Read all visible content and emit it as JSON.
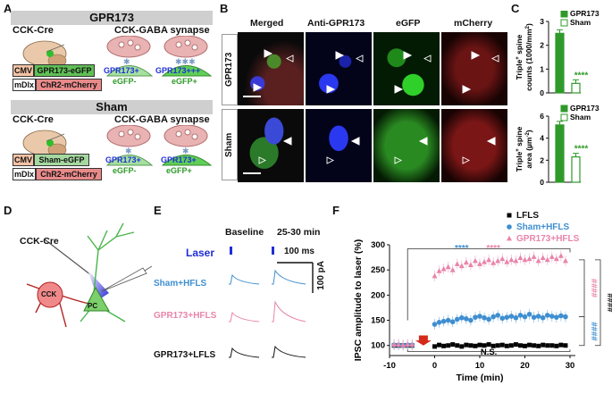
{
  "panels": {
    "a": "A",
    "b": "B",
    "c": "C",
    "d": "D",
    "e": "E",
    "f": "F"
  },
  "panelA": {
    "top": {
      "banner": "GPR173",
      "mouse": "CCK-Cre",
      "synapse": "CCK-GABA synapse",
      "cmv": "CMV",
      "construct": "GPR173-eGFP",
      "mdlx": "mDlx",
      "chr2": "ChR2-mCherry",
      "left_line1": "GPR173+",
      "left_line2": "eGFP-",
      "right_line1": "GPR173+++",
      "right_line2": "eGFP+"
    },
    "bottom": {
      "banner": "Sham",
      "mouse": "CCK-Cre",
      "synapse": "CCK-GABA synapse",
      "cmv": "CMV",
      "construct": "Sham-eGFP",
      "mdlx": "mDlx",
      "chr2": "ChR2-mCherry",
      "left_line1": "GPR173+",
      "left_line2": "eGFP-",
      "right_line1": "GPR173+",
      "right_line2": "eGFP+"
    }
  },
  "panelB": {
    "columns": [
      "Merged",
      "Anti-GPR173",
      "eGFP",
      "mCherry"
    ],
    "rows": [
      "GPR173",
      "Sham"
    ],
    "colors": {
      "merged": "#6a3a9a",
      "blue": "#1f2fd6",
      "green": "#2fbf2a",
      "red": "#d42a2a"
    }
  },
  "panelC": {
    "chart_data": [
      {
        "type": "bar",
        "categories": [
          "GPR173",
          "Sham"
        ],
        "values": [
          2.5,
          0.4
        ],
        "ylim": [
          0,
          3
        ],
        "yticks": [
          "0",
          "1",
          "2",
          "3"
        ],
        "ylabel": "Triple+ spine counts (1000/mm2)",
        "ylabel_parts": [
          "Triple",
          "+",
          " spine",
          "counts (1000/mm",
          "2",
          ")"
        ],
        "legend": [
          "GPR173",
          "Sham"
        ],
        "significance": "****"
      },
      {
        "type": "bar",
        "categories": [
          "GPR173",
          "Sham"
        ],
        "values": [
          5.2,
          2.3
        ],
        "ylim": [
          0,
          6
        ],
        "yticks": [
          "0",
          "2",
          "4",
          "6"
        ],
        "ylabel": "Triple+ spine area (µm-2)",
        "ylabel_parts": [
          "Triple",
          "+",
          " spine",
          "area (µm",
          "-2",
          ")"
        ],
        "legend": [
          "GPR173",
          "Sham"
        ],
        "significance": "****"
      }
    ],
    "colors": {
      "gpr173": "#2f9a2a",
      "sham": "#ffffff"
    }
  },
  "panelD": {
    "cck_cre": "CCK-Cre",
    "cck": "CCK",
    "pc": "PC"
  },
  "panelE": {
    "baseline": "Baseline",
    "post": "25-30 min",
    "laser": "Laser",
    "scale_time": "100 ms",
    "scale_amp": "100 pA",
    "traces": [
      {
        "label": "Sham+HFLS",
        "color": "#3f8fd0"
      },
      {
        "label": "GPR173+HFLS",
        "color": "#e985aa"
      },
      {
        "label": "GPR173+LFLS",
        "color": "#111111"
      }
    ]
  },
  "panelF": {
    "chart_data": {
      "type": "scatter",
      "xlabel": "Time (min)",
      "ylabel": "IPSC amplitude to laser (%)",
      "xlim": [
        -10,
        30
      ],
      "ylim": [
        80,
        300
      ],
      "xticks": [
        "-10",
        "0",
        "10",
        "20",
        "30"
      ],
      "yticks": [
        "100",
        "150",
        "200",
        "250",
        "300"
      ],
      "legend": [
        "LFLS",
        "Sham+HFLS",
        "GPR173+HFLS"
      ],
      "series": [
        {
          "name": "LFLS",
          "color": "#000000",
          "marker": "square",
          "baseline": {
            "x": [
              -9,
              -8,
              -7,
              -6,
              -5
            ],
            "y": [
              100,
              100,
              100,
              100,
              100
            ]
          },
          "post": {
            "x": [
              0,
              1,
              2,
              3,
              4,
              5,
              6,
              7,
              8,
              9,
              10,
              11,
              12,
              13,
              14,
              15,
              16,
              17,
              18,
              19,
              20,
              21,
              22,
              23,
              24,
              25,
              26,
              27,
              28,
              29
            ],
            "y": [
              98,
              101,
              99,
              100,
              102,
              100,
              98,
              101,
              100,
              99,
              101,
              100,
              102,
              99,
              100,
              101,
              99,
              100,
              102,
              100,
              99,
              101,
              100,
              99,
              101,
              100,
              100,
              99,
              101,
              100
            ]
          }
        },
        {
          "name": "Sham+HFLS",
          "color": "#3f8fd0",
          "marker": "circle",
          "baseline": {
            "x": [
              -9,
              -8,
              -7,
              -6,
              -5
            ],
            "y": [
              101,
              101,
              100,
              101,
              101
            ]
          },
          "post": {
            "x": [
              0,
              1,
              2,
              3,
              4,
              5,
              6,
              7,
              8,
              9,
              10,
              11,
              12,
              13,
              14,
              15,
              16,
              17,
              18,
              19,
              20,
              21,
              22,
              23,
              24,
              25,
              26,
              27,
              28,
              29
            ],
            "y": [
              142,
              146,
              148,
              150,
              147,
              152,
              155,
              153,
              150,
              156,
              158,
              155,
              152,
              157,
              160,
              154,
              156,
              158,
              155,
              160,
              157,
              162,
              156,
              158,
              155,
              160,
              158,
              156,
              159,
              157
            ]
          }
        },
        {
          "name": "GPR173+HFLS",
          "color": "#e985aa",
          "marker": "triangle",
          "baseline": {
            "x": [
              -9,
              -8,
              -7,
              -6,
              -5
            ],
            "y": [
              102,
              102,
              101,
              102,
              102
            ]
          },
          "post": {
            "x": [
              0,
              1,
              2,
              3,
              4,
              5,
              6,
              7,
              8,
              9,
              10,
              11,
              12,
              13,
              14,
              15,
              16,
              17,
              18,
              19,
              20,
              21,
              22,
              23,
              24,
              25,
              26,
              27,
              28,
              29
            ],
            "y": [
              238,
              248,
              252,
              256,
              250,
              262,
              258,
              265,
              260,
              268,
              262,
              266,
              270,
              264,
              268,
              272,
              266,
              270,
              268,
              274,
              270,
              272,
              276,
              268,
              274,
              270,
              276,
              272,
              278,
              268
            ]
          }
        }
      ],
      "annotations": {
        "sig_blue": "****",
        "sig_pink": "****",
        "ns": "N.S.",
        "hash_pink": "####",
        "hash_blue": "####",
        "hash_black": "####"
      }
    }
  }
}
